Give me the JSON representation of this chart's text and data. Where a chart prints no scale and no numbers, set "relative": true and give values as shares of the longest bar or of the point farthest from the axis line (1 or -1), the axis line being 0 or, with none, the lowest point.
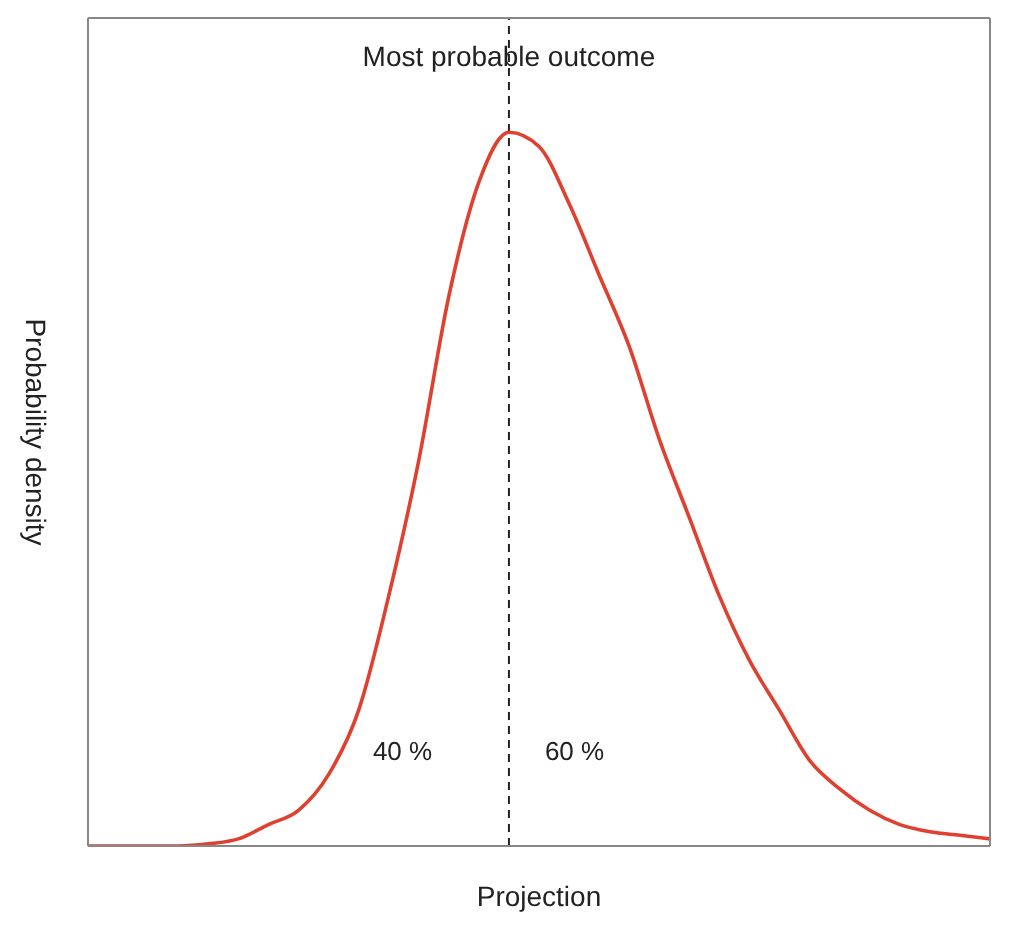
{
  "chart_data": {
    "type": "line",
    "relative": true,
    "xlabel": "Projection",
    "ylabel": "Probability density",
    "categories": [
      null,
      null,
      null,
      null,
      null,
      null,
      null,
      null,
      null,
      null,
      null,
      null,
      null,
      null,
      null,
      null,
      null,
      null,
      null,
      null,
      null,
      null,
      null,
      null,
      null,
      null,
      null,
      null,
      null,
      null,
      null
    ],
    "series": [
      {
        "color": "#e0402f",
        "values": [
          0,
          0,
          0,
          0,
          0.003,
          0.01,
          0.03,
          0.05,
          0.1,
          0.19,
          0.35,
          0.54,
          0.77,
          0.93,
          1,
          0.98,
          0.9,
          0.8,
          0.7,
          0.57,
          0.46,
          0.35,
          0.26,
          0.19,
          0.12,
          0.08,
          0.05,
          0.03,
          0.02,
          0.015,
          0.01
        ]
      }
    ],
    "annotations": [
      "Most probable outcome",
      "40 %",
      "60 %"
    ],
    "marker": "none",
    "line_style": "solid",
    "grid": false
  }
}
